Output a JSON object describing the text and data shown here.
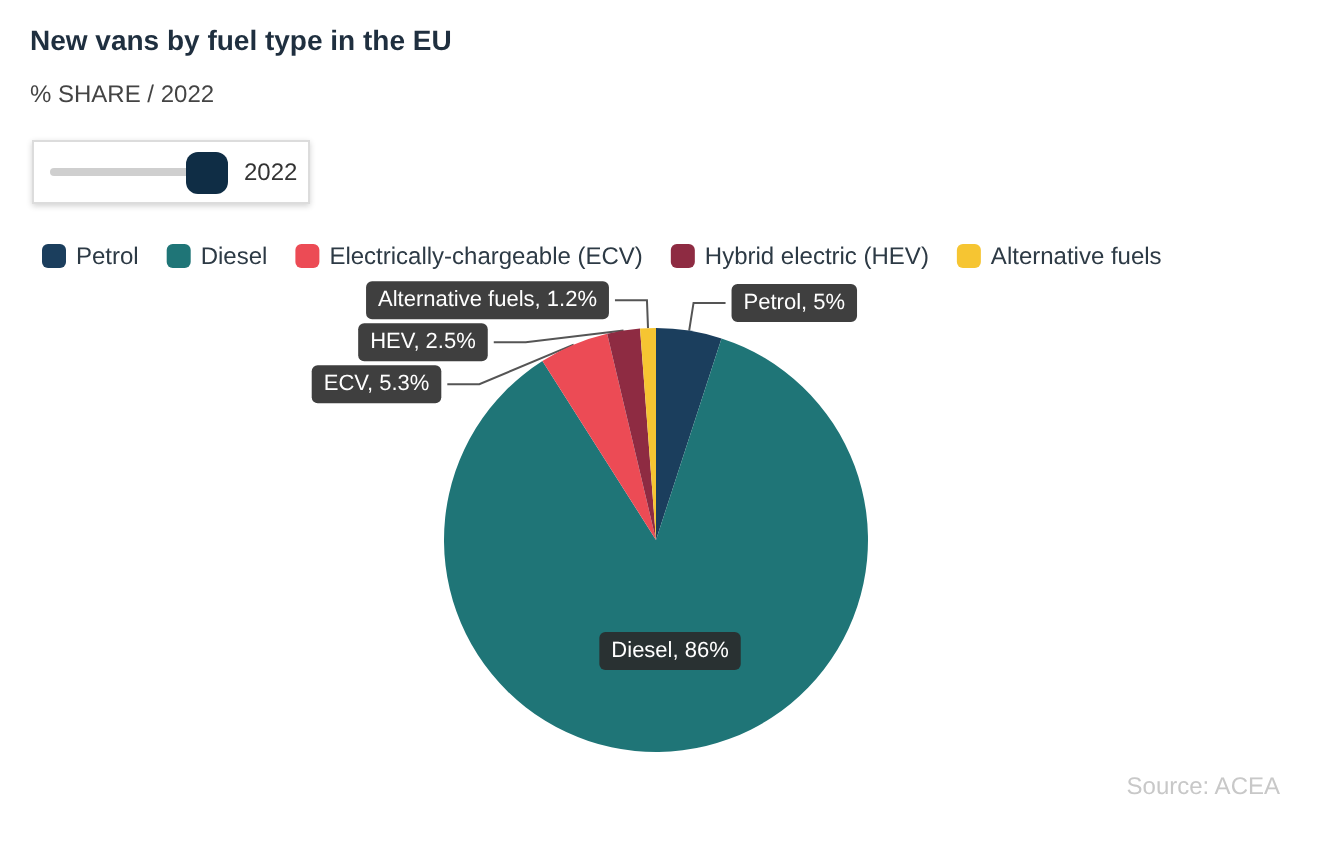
{
  "chart_data": {
    "type": "pie",
    "title": "New vans by fuel type in the EU",
    "subtitle": "% SHARE / 2022",
    "categories": [
      "Petrol",
      "Diesel",
      "Electrically-chargeable (ECV)",
      "Hybrid electric (HEV)",
      "Alternative fuels"
    ],
    "values": [
      5,
      86,
      5.3,
      2.5,
      1.2
    ],
    "colors": [
      "#1b3e5d",
      "#1f7577",
      "#ec4b55",
      "#8e2b42",
      "#f6c532"
    ],
    "value_labels": [
      "Petrol, 5%",
      "Diesel, 86%",
      "ECV, 5.3%",
      "HEV, 2.5%",
      "Alternative fuels, 1.2%"
    ],
    "legend": "top left",
    "annotations": [
      "2022",
      "Source: ACEA"
    ]
  }
}
